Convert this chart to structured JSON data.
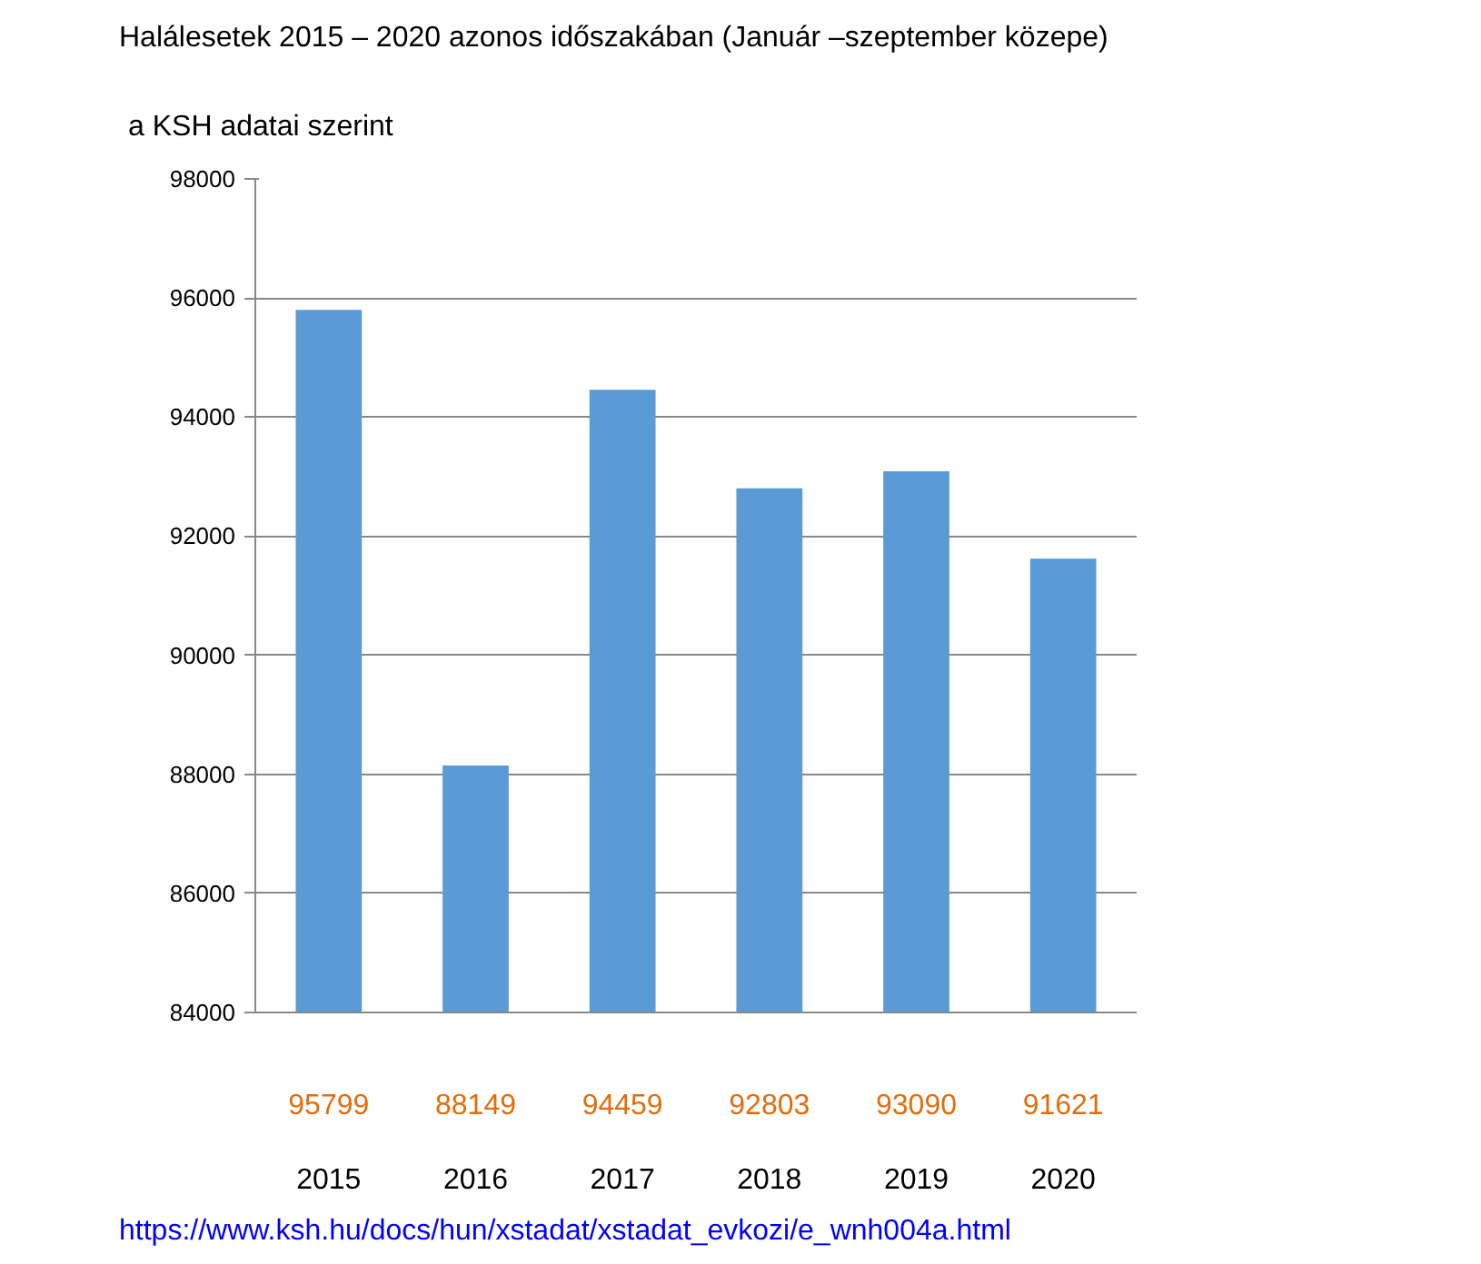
{
  "chart_data": {
    "type": "bar",
    "title": "Halálesetek 2015 – 2020 azonos időszakában (Január –szeptember közepe)",
    "subtitle": "a KSH adatai szerint",
    "categories": [
      "2015",
      "2016",
      "2017",
      "2018",
      "2019",
      "2020"
    ],
    "values": [
      95799,
      88149,
      94459,
      92803,
      93090,
      91621
    ],
    "color": "#5b9bd5",
    "ylim": [
      84000,
      98000
    ],
    "yticks": [
      84000,
      86000,
      88000,
      90000,
      92000,
      94000,
      96000,
      98000
    ],
    "grid": "y",
    "data_labels": true,
    "annotations": [
      "https://www.ksh.hu/docs/hun/xstadat/xstadat_evkozi/e_wnh004a.html"
    ]
  }
}
